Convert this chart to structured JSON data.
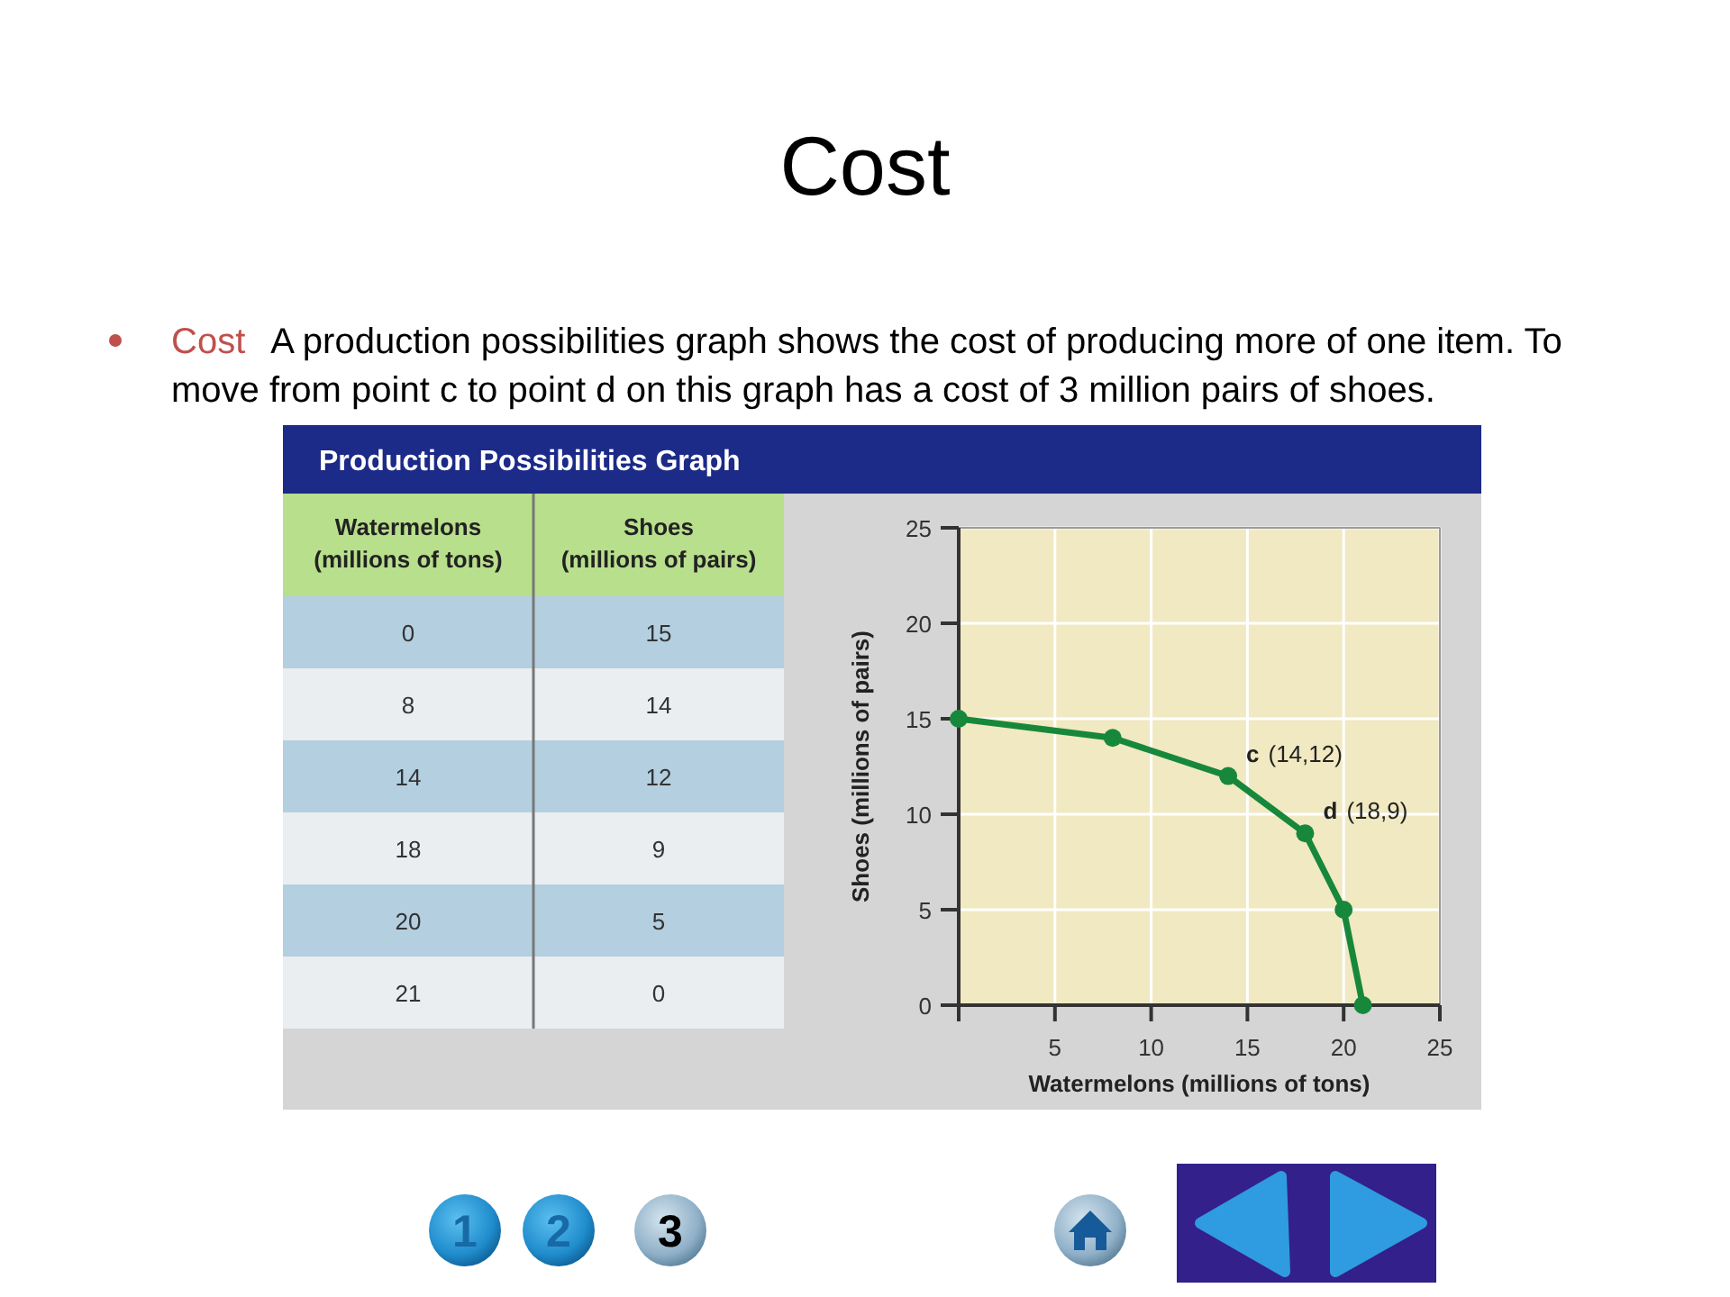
{
  "chart_data": [
    {
      "type": "other",
      "categories": [
        "Watermelons (millions of tons)",
        "Shoes (millions of pairs)"
      ],
      "annotations": [
        "0",
        "15",
        "8",
        "14",
        "14",
        "12",
        "18",
        "9",
        "20",
        "5",
        "21",
        "0"
      ]
    },
    {
      "type": "line",
      "title": "Cost",
      "subtitle": "Cost A production possibilities graph shows the cost of producing more of one item. To move from point c to point d on this graph has a cost of 3 million pairs of shoes.",
      "xlabel": "Watermelons (millions of tons)",
      "ylabel": "Shoes (millions of pairs)",
      "x": [
        0,
        8,
        14,
        18,
        20,
        21
      ],
      "values": [
        15,
        14,
        12,
        9,
        5,
        0
      ],
      "color": "#17883b",
      "xlim": [
        0,
        25
      ],
      "ylim": [
        0,
        25
      ],
      "xticks": [
        {
          "value": 0,
          "label": null
        },
        5,
        10,
        15,
        20,
        25
      ],
      "yticks": [
        0,
        5,
        10,
        15,
        20,
        25
      ],
      "grid": true,
      "marker": "circle",
      "annotations": [
        "Production Possibilities Graph",
        {
          "text": "c (14,12)",
          "x": 14,
          "y": 12
        },
        {
          "text": "d (18,9)",
          "x": 18,
          "y": 9
        },
        "1",
        "2",
        "3"
      ]
    }
  ]
}
